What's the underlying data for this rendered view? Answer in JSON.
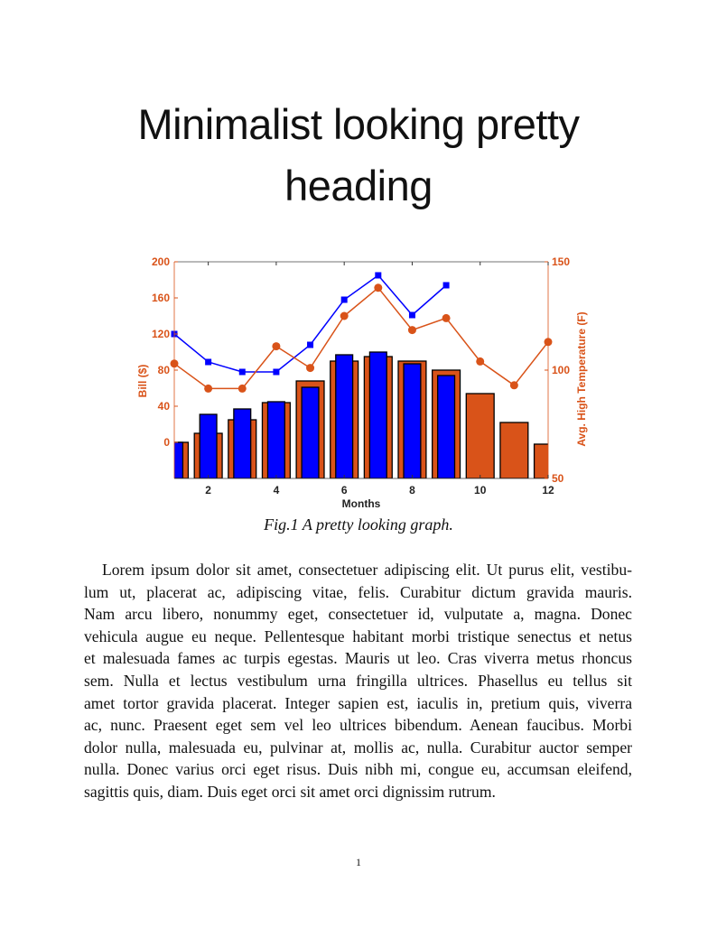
{
  "heading": {
    "line1": "Minimalist looking pretty",
    "line2": "heading"
  },
  "figure": {
    "caption": "Fig.1 A pretty looking graph."
  },
  "chart_data": {
    "type": "bar+line",
    "xlabel": "Months",
    "ylabel_left": "Bill ($)",
    "ylabel_right": "Avg. High Temperature (F)",
    "x": [
      1,
      2,
      3,
      4,
      5,
      6,
      7,
      8,
      9,
      10,
      11,
      12
    ],
    "xlim": [
      1,
      12
    ],
    "xticks": [
      2,
      4,
      6,
      8,
      10,
      12
    ],
    "ylim_left": [
      -40,
      200
    ],
    "yticks_left": [
      0,
      40,
      80,
      120,
      160,
      200
    ],
    "ylim_right": [
      50,
      150
    ],
    "yticks_right": [
      50,
      100,
      150
    ],
    "grid": false,
    "colors": {
      "orange": "#d95319",
      "blue": "#0000ff"
    },
    "series": [
      {
        "type": "bar",
        "axis": "left",
        "color": "#d95319",
        "values": [
          0,
          10,
          25,
          44,
          68,
          90,
          95,
          90,
          80,
          54,
          22,
          -2
        ]
      },
      {
        "type": "bar",
        "axis": "left",
        "color": "#0000ff",
        "values": [
          0,
          31,
          37,
          45,
          61,
          97,
          100,
          87,
          74,
          null,
          null,
          null
        ]
      },
      {
        "type": "line",
        "marker": "square",
        "axis": "left",
        "color": "#0000ff",
        "values": [
          120,
          89,
          78,
          78,
          108,
          158,
          185,
          141,
          174,
          null,
          null,
          null
        ]
      },
      {
        "type": "line",
        "marker": "circle",
        "axis": "right",
        "color": "#d95319",
        "values": [
          103,
          91.5,
          91.5,
          111,
          101,
          125,
          138,
          118.5,
          124,
          104,
          93,
          113
        ]
      }
    ]
  },
  "body": {
    "lines": [
      "Lorem ipsum dolor sit amet, consectetuer adipiscing elit. Ut purus elit, vestibu-",
      "lum ut, placerat ac, adipiscing vitae, felis. Curabitur dictum gravida mauris.",
      "Nam arcu libero, nonummy eget, consectetuer id, vulputate a, magna. Donec",
      "vehicula augue eu neque. Pellentesque habitant morbi tristique senectus et netus",
      "et malesuada fames ac turpis egestas. Mauris ut leo. Cras viverra metus rhoncus",
      "sem. Nulla et lectus vestibulum urna fringilla ultrices. Phasellus eu tellus sit",
      "amet tortor gravida placerat. Integer sapien est, iaculis in, pretium quis, viverra",
      "ac, nunc. Praesent eget sem vel leo ultrices bibendum. Aenean faucibus. Morbi",
      "dolor nulla, malesuada eu, pulvinar at, mollis ac, nulla. Curabitur auctor semper",
      "nulla. Donec varius orci eget risus. Duis nibh mi, congue eu, accumsan eleifend,",
      "sagittis quis, diam. Duis eget orci sit amet orci dignissim rutrum."
    ]
  },
  "page_number": "1"
}
